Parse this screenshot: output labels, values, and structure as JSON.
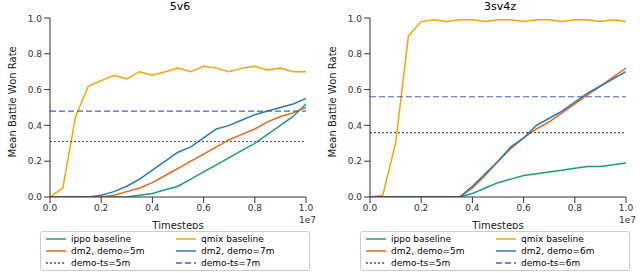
{
  "chart_data": [
    {
      "type": "line",
      "title": "5v6",
      "xlabel": "Timesteps",
      "ylabel": "Mean Battle Won Rate",
      "x_offset_text": "1e7",
      "x": [
        0,
        0.05,
        0.1,
        0.15,
        0.2,
        0.25,
        0.3,
        0.35,
        0.4,
        0.45,
        0.5,
        0.55,
        0.6,
        0.65,
        0.7,
        0.75,
        0.8,
        0.85,
        0.9,
        0.95,
        1.0
      ],
      "xlim": [
        0,
        1
      ],
      "xticks": [
        {
          "value": 0,
          "label": "0.0"
        },
        {
          "value": 0.2,
          "label": "0.2"
        },
        {
          "value": 0.4,
          "label": "0.4"
        },
        {
          "value": 0.6,
          "label": "0.6"
        },
        {
          "value": 0.8,
          "label": "0.8"
        },
        {
          "value": 1,
          "label": "1.0"
        }
      ],
      "ylim": [
        0,
        1
      ],
      "yticks": [
        {
          "value": 0,
          "label": "0.0"
        },
        {
          "value": 0.2,
          "label": "0.2"
        },
        {
          "value": 0.4,
          "label": "0.4"
        },
        {
          "value": 0.6,
          "label": "0.6"
        },
        {
          "value": 0.8,
          "label": "0.8"
        },
        {
          "value": 1,
          "label": "1.0"
        }
      ],
      "grid": false,
      "legend": "bottom",
      "series": [
        {
          "name": "ippo baseline",
          "type": "line",
          "color": "#1a9e77",
          "line_style": "solid",
          "values": [
            0,
            0,
            0,
            0,
            0,
            0,
            0,
            0.01,
            0.02,
            0.04,
            0.06,
            0.1,
            0.14,
            0.18,
            0.22,
            0.26,
            0.3,
            0.35,
            0.4,
            0.45,
            0.52
          ]
        },
        {
          "name": "qmix baseline",
          "type": "line",
          "color": "#f5a400",
          "line_style": "solid",
          "values": [
            0,
            0.05,
            0.45,
            0.62,
            0.65,
            0.68,
            0.66,
            0.7,
            0.68,
            0.7,
            0.72,
            0.7,
            0.73,
            0.72,
            0.7,
            0.72,
            0.73,
            0.71,
            0.72,
            0.7,
            0.7
          ]
        },
        {
          "name": "dm2, demo=5m",
          "type": "line",
          "color": "#e8651a",
          "line_style": "solid",
          "values": [
            0,
            0,
            0,
            0,
            0,
            0.01,
            0.03,
            0.05,
            0.08,
            0.12,
            0.16,
            0.2,
            0.24,
            0.28,
            0.32,
            0.35,
            0.38,
            0.42,
            0.45,
            0.47,
            0.5
          ]
        },
        {
          "name": "dm2, demo=7m",
          "type": "line",
          "color": "#2b78b8",
          "line_style": "solid",
          "values": [
            0,
            0,
            0,
            0,
            0.01,
            0.03,
            0.06,
            0.1,
            0.15,
            0.2,
            0.25,
            0.28,
            0.33,
            0.38,
            0.4,
            0.43,
            0.46,
            0.48,
            0.5,
            0.52,
            0.55
          ]
        },
        {
          "name": "demo-ts=5m",
          "type": "hline",
          "color": "#555555",
          "line_style": "dotted",
          "value": 0.31
        },
        {
          "name": "demo-ts=7m",
          "type": "hline",
          "color": "#4a5ec8",
          "line_style": "dashed",
          "value": 0.48
        }
      ]
    },
    {
      "type": "line",
      "title": "3sv4z",
      "xlabel": "Timesteps",
      "ylabel": "Mean Battle Won Rate",
      "x_offset_text": "1e7",
      "x": [
        0,
        0.05,
        0.1,
        0.15,
        0.2,
        0.25,
        0.3,
        0.35,
        0.4,
        0.45,
        0.5,
        0.55,
        0.6,
        0.65,
        0.7,
        0.75,
        0.8,
        0.85,
        0.9,
        0.95,
        1.0
      ],
      "xlim": [
        0,
        1
      ],
      "xticks": [
        {
          "value": 0,
          "label": "0.0"
        },
        {
          "value": 0.2,
          "label": "0.2"
        },
        {
          "value": 0.4,
          "label": "0.4"
        },
        {
          "value": 0.6,
          "label": "0.6"
        },
        {
          "value": 0.8,
          "label": "0.8"
        },
        {
          "value": 1,
          "label": "1.0"
        }
      ],
      "ylim": [
        0,
        1
      ],
      "yticks": [
        {
          "value": 0,
          "label": "0.0"
        },
        {
          "value": 0.2,
          "label": "0.2"
        },
        {
          "value": 0.4,
          "label": "0.4"
        },
        {
          "value": 0.6,
          "label": "0.6"
        },
        {
          "value": 0.8,
          "label": "0.8"
        },
        {
          "value": 1,
          "label": "1.0"
        }
      ],
      "grid": false,
      "legend": "bottom",
      "series": [
        {
          "name": "ippo baseline",
          "type": "line",
          "color": "#1a9e77",
          "line_style": "solid",
          "values": [
            0,
            0,
            0,
            0,
            0,
            0,
            0,
            0,
            0.02,
            0.05,
            0.08,
            0.1,
            0.12,
            0.13,
            0.14,
            0.15,
            0.16,
            0.17,
            0.17,
            0.18,
            0.19
          ]
        },
        {
          "name": "qmix baseline",
          "type": "line",
          "color": "#f5a400",
          "line_style": "solid",
          "values": [
            0,
            0.01,
            0.3,
            0.9,
            0.98,
            0.99,
            0.98,
            0.99,
            0.99,
            0.98,
            0.99,
            0.99,
            0.98,
            0.99,
            0.99,
            0.98,
            0.99,
            0.99,
            0.98,
            0.99,
            0.98
          ]
        },
        {
          "name": "dm2, demo=5m",
          "type": "line",
          "color": "#e8651a",
          "line_style": "solid",
          "values": [
            0,
            0,
            0,
            0,
            0,
            0,
            0,
            0,
            0.05,
            0.12,
            0.2,
            0.27,
            0.33,
            0.38,
            0.42,
            0.47,
            0.52,
            0.57,
            0.62,
            0.67,
            0.72
          ]
        },
        {
          "name": "dm2, demo=6m",
          "type": "line",
          "color": "#2b78b8",
          "line_style": "solid",
          "values": [
            0,
            0,
            0,
            0,
            0,
            0,
            0,
            0,
            0.06,
            0.13,
            0.2,
            0.28,
            0.33,
            0.4,
            0.44,
            0.48,
            0.53,
            0.58,
            0.62,
            0.66,
            0.7
          ]
        },
        {
          "name": "demo-ts=5m",
          "type": "hline",
          "color": "#555555",
          "line_style": "dotted",
          "value": 0.36
        },
        {
          "name": "demo-ts=6m",
          "type": "hline",
          "color": "#4a5ec8",
          "line_style": "dashed",
          "value": 0.56
        }
      ]
    }
  ]
}
